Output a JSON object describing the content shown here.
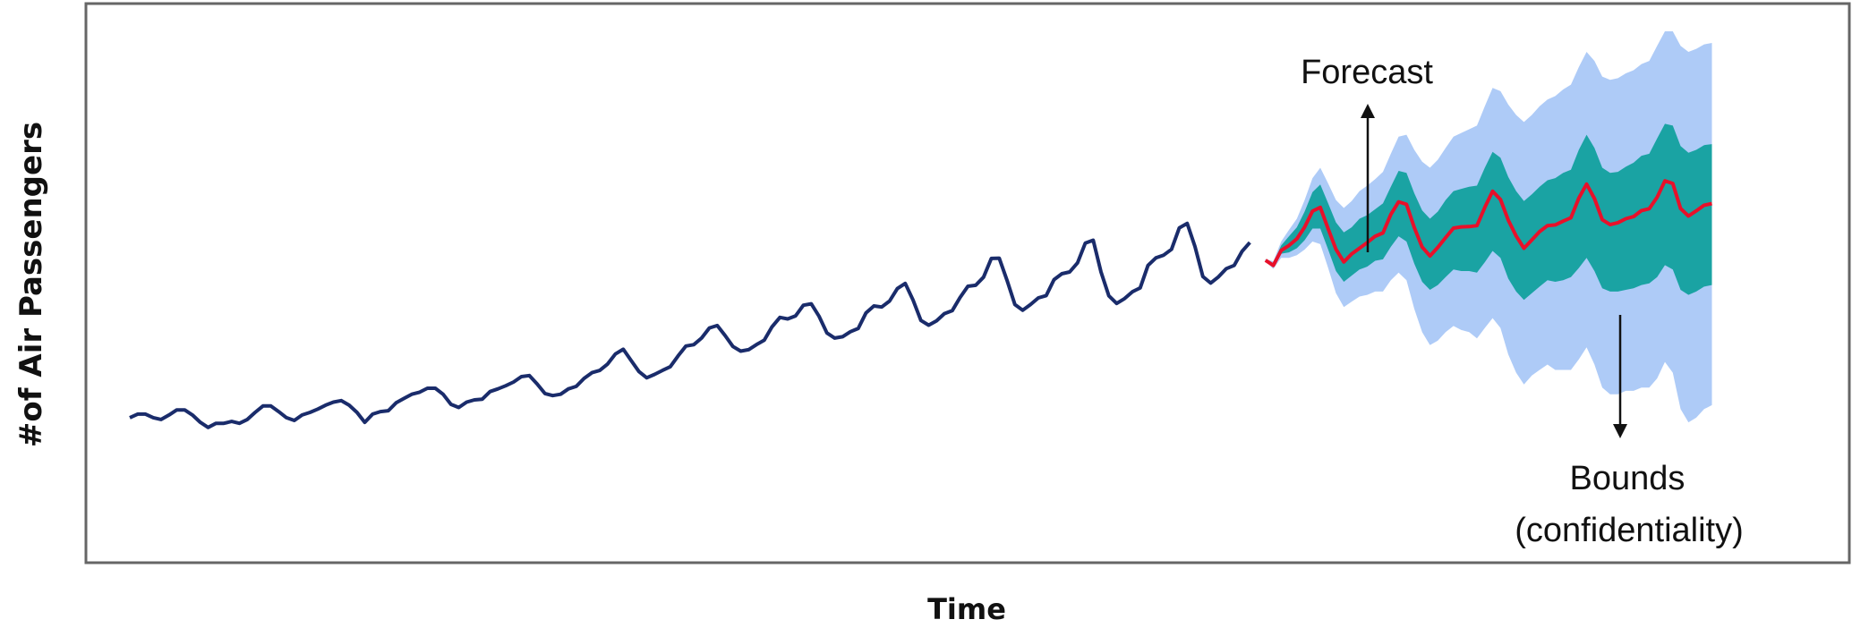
{
  "chart_data": {
    "type": "line",
    "xlabel": "Time",
    "ylabel": "#of Air Passengers",
    "xlim": [
      0,
      216
    ],
    "ylim": [
      0,
      1000
    ],
    "grid": false,
    "annotations": [
      {
        "text": "Forecast",
        "arrow": "up"
      },
      {
        "text": "Bounds",
        "arrow": "down"
      },
      {
        "text": "(confidentiality)",
        "arrow": "none"
      }
    ],
    "colors": {
      "history": "#1a2c6b",
      "forecast": "#e8102a",
      "inner_band": "#1aa3a3",
      "outer_band": "#aecbf7",
      "frame": "#666666"
    },
    "series": [
      {
        "role": "history",
        "x_start": 0,
        "values": [
          40,
          44,
          44,
          40,
          38,
          43,
          49,
          49,
          43,
          35,
          30,
          34,
          34,
          36,
          34,
          38,
          46,
          54,
          54,
          47,
          40,
          37,
          43,
          46,
          50,
          55,
          59,
          61,
          55,
          46,
          35,
          44,
          47,
          48,
          58,
          64,
          70,
          73,
          79,
          79,
          70,
          56,
          52,
          59,
          62,
          63,
          74,
          78,
          83,
          89,
          98,
          100,
          86,
          71,
          68,
          70,
          78,
          82,
          95,
          105,
          109,
          121,
          141,
          151,
          128,
          107,
          96,
          102,
          109,
          116,
          137,
          158,
          161,
          176,
          200,
          206,
          182,
          157,
          147,
          150,
          161,
          171,
          203,
          227,
          223,
          231,
          260,
          264,
          230,
          188,
          176,
          179,
          191,
          199,
          239,
          258,
          255,
          272,
          309,
          325,
          275,
          219,
          207,
          218,
          237,
          245,
          282,
          316,
          319,
          345,
          408,
          409,
          335,
          262,
          246,
          262,
          281,
          288,
          337,
          356,
          362,
          393,
          464,
          475,
          362,
          287,
          265,
          279,
          299,
          311,
          384,
          410,
          420,
          441,
          523,
          541,
          451,
          347,
          326,
          346,
          373,
          384,
          433,
          466
        ]
      },
      {
        "role": "forecast",
        "x_start": 145,
        "values": [
          402,
          384,
          437,
          455,
          480,
          526,
          592,
          608,
          519,
          441,
          396,
          424,
          445,
          466,
          490,
          503,
          578,
          632,
          621,
          524,
          449,
          417,
          448,
          485,
          522,
          527,
          528,
          532,
          608,
          679,
          642,
          554,
          491,
          445,
          476,
          508,
          532,
          535,
          550,
          564,
          648,
          712,
          646,
          556,
          536,
          544,
          560,
          569,
          594,
          602,
          652,
          727,
          715,
          603,
          571,
          593,
          617,
          624
        ]
      },
      {
        "role": "inner-band",
        "x_start": 145,
        "lower": [
          400,
          380,
          425,
          430,
          445,
          475,
          520,
          520,
          440,
          365,
          330,
          350,
          370,
          380,
          400,
          405,
          450,
          490,
          470,
          390,
          330,
          305,
          320,
          345,
          370,
          365,
          365,
          360,
          395,
          435,
          410,
          340,
          300,
          275,
          295,
          315,
          335,
          330,
          335,
          345,
          375,
          410,
          365,
          310,
          300,
          300,
          305,
          310,
          320,
          325,
          345,
          385,
          370,
          305,
          290,
          300,
          315,
          320
        ],
        "upper": [
          404,
          392,
          455,
          490,
          525,
          590,
          675,
          710,
          625,
          545,
          505,
          525,
          560,
          575,
          600,
          625,
          700,
          775,
          765,
          670,
          595,
          560,
          590,
          640,
          680,
          690,
          700,
          705,
          790,
          870,
          840,
          745,
          680,
          635,
          665,
          700,
          730,
          740,
          765,
          780,
          880,
          960,
          890,
          790,
          765,
          770,
          795,
          815,
          850,
          860,
          940,
          1020,
          1010,
          900,
          865,
          880,
          905,
          910
        ]
      },
      {
        "role": "outer-band",
        "x_start": 145,
        "lower": [
          398,
          372,
          410,
          410,
          420,
          440,
          470,
          460,
          375,
          295,
          255,
          270,
          285,
          290,
          300,
          300,
          335,
          360,
          335,
          250,
          190,
          160,
          170,
          190,
          205,
          195,
          190,
          175,
          200,
          225,
          200,
          140,
          105,
          85,
          100,
          110,
          120,
          110,
          110,
          110,
          130,
          155,
          120,
          80,
          70,
          70,
          75,
          75,
          80,
          80,
          95,
          125,
          105,
          50,
          35,
          40,
          50,
          55
        ],
        "upper": [
          406,
          398,
          470,
          515,
          560,
          640,
          740,
          790,
          715,
          640,
          605,
          635,
          680,
          705,
          735,
          770,
          860,
          950,
          960,
          880,
          820,
          790,
          830,
          890,
          950,
          970,
          990,
          1010,
          1120,
          1230,
          1210,
          1130,
          1070,
          1030,
          1070,
          1120,
          1160,
          1180,
          1220,
          1250,
          1360,
          1460,
          1400,
          1300,
          1280,
          1290,
          1320,
          1340,
          1380,
          1400,
          1500,
          1600,
          1600,
          1500,
          1460,
          1480,
          1510,
          1520
        ]
      }
    ]
  }
}
